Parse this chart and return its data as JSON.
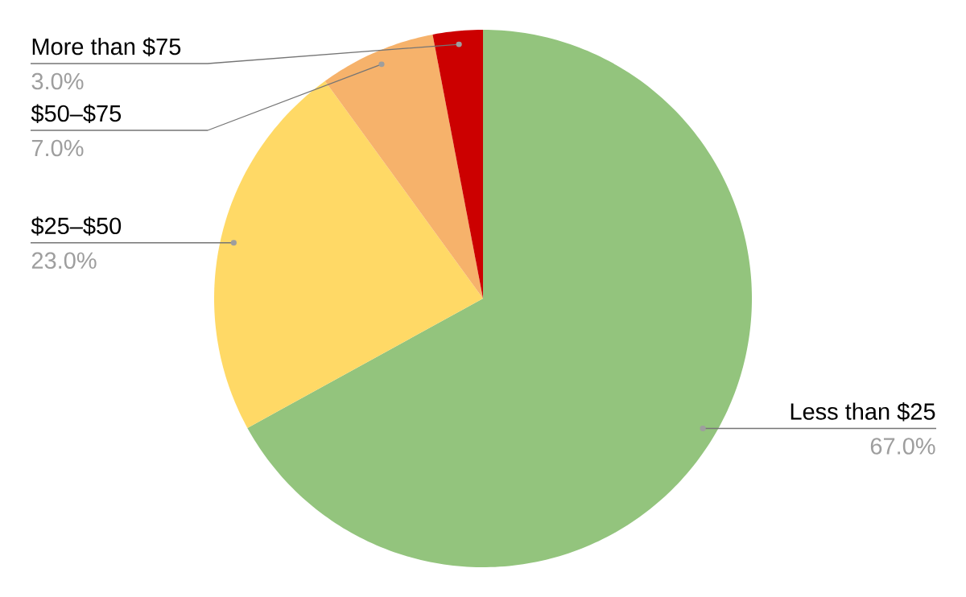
{
  "chart_data": {
    "type": "pie",
    "categories": [
      "Less than $25",
      "$25–$50",
      "$50–$75",
      "More than $75"
    ],
    "values": [
      67,
      23,
      7,
      3
    ],
    "colors": [
      "#93c47d",
      "#ffd966",
      "#f6b26b",
      "#cc0000"
    ],
    "value_labels": [
      "67.0%",
      "23.0%",
      "7.0%",
      "3.0%"
    ]
  }
}
